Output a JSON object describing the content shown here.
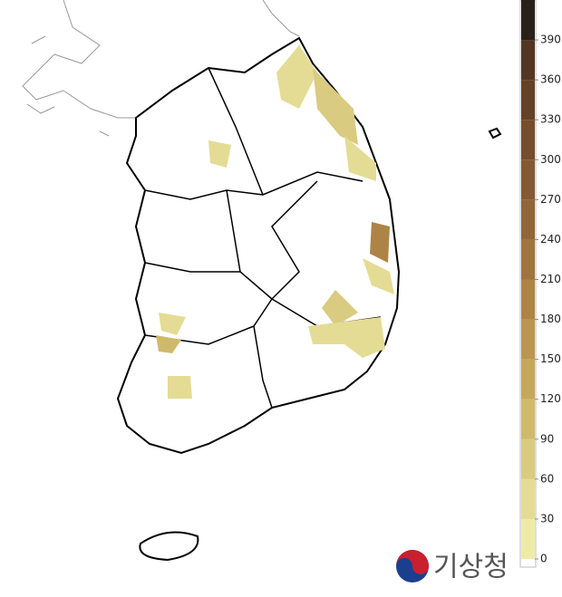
{
  "legend": {
    "lim": [
      0,
      420
    ],
    "ticks": [
      0,
      30,
      60,
      90,
      120,
      150,
      180,
      210,
      240,
      270,
      300,
      330,
      360,
      390
    ],
    "colors": [
      "#eeeba8",
      "#e4dc94",
      "#d9cb80",
      "#cfba6c",
      "#c6a85c",
      "#bb9650",
      "#ae8446",
      "#a0743e",
      "#926638",
      "#835a33",
      "#744e2d",
      "#644228",
      "#533723",
      "#2a201a"
    ]
  },
  "logo": {
    "text": "기상청"
  }
}
